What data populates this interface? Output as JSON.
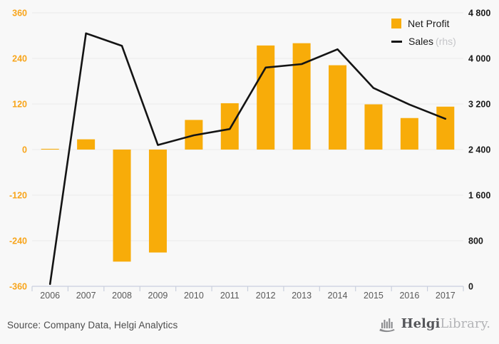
{
  "chart_data": {
    "type": "bar",
    "title": "",
    "categories": [
      "2006",
      "2007",
      "2008",
      "2009",
      "2010",
      "2011",
      "2012",
      "2013",
      "2014",
      "2015",
      "2016",
      "2017"
    ],
    "series": [
      {
        "name": "Net Profit",
        "render": "bar",
        "axis": "left",
        "color": "#F8AC09",
        "values": [
          2,
          27,
          -295,
          -271,
          78,
          122,
          274,
          280,
          222,
          119,
          83,
          113
        ]
      },
      {
        "name": "Sales",
        "render": "line",
        "axis": "right",
        "color": "#141414",
        "values": [
          40,
          4440,
          4220,
          2480,
          2650,
          2760,
          3840,
          3900,
          4160,
          3480,
          3190,
          2940
        ]
      }
    ],
    "left_axis": {
      "min": -360,
      "max": 360,
      "ticks": [
        "360",
        "240",
        "120",
        "0",
        "-120",
        "-240",
        "-360"
      ],
      "label_color": "#F8A51B"
    },
    "right_axis": {
      "min": 0,
      "max": 4800,
      "ticks": [
        "4 800",
        "4 000",
        "3 200",
        "2 400",
        "1 600",
        "800",
        "0"
      ],
      "label_color": "#1a1a1a"
    },
    "xlabel": "",
    "ylabel": "",
    "grid": true,
    "gridline_color": "#eaeaea",
    "axis_line_color": "#c9cfdd",
    "year_label_color": "#595959",
    "legend_position": "top-right"
  },
  "legend": {
    "net_profit_label": "Net Profit",
    "sales_label": "Sales",
    "sales_suffix": "(rhs)"
  },
  "footer": {
    "source": "Source: Company Data, Helgi Analytics",
    "logo_primary": "Helgi",
    "logo_secondary": "Library."
  }
}
